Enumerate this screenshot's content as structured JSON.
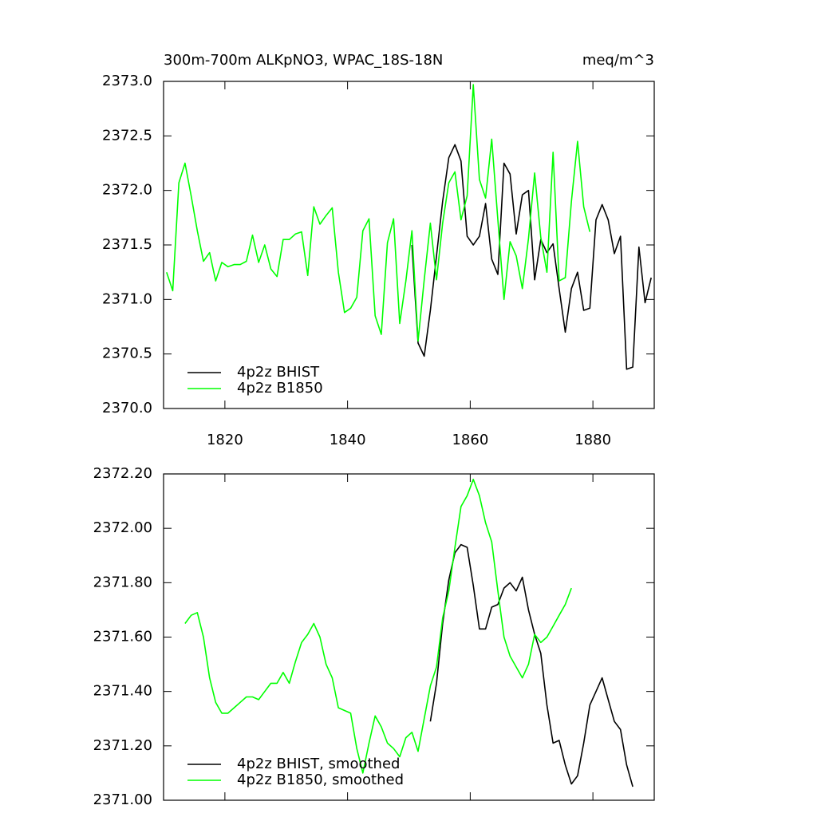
{
  "chart_data": [
    {
      "type": "line",
      "title": "300m-700m ALKpNO3, WPAC_18S-18N",
      "units": "meq/m^3",
      "xlim": [
        1810,
        1890
      ],
      "xticks": [
        1820,
        1840,
        1860,
        1880
      ],
      "xticklabels": true,
      "ylim": [
        2370,
        2373
      ],
      "yticks": [
        {
          "value": 2370,
          "label": "2370.0"
        },
        {
          "value": 2370.5,
          "label": "2370.5"
        },
        {
          "value": 2371,
          "label": "2371.0"
        },
        {
          "value": 2371.5,
          "label": "2371.5"
        },
        {
          "value": 2372,
          "label": "2372.0"
        },
        {
          "value": 2372.5,
          "label": "2372.5"
        },
        {
          "value": 2373,
          "label": "2373.0"
        }
      ],
      "legend": "lower left",
      "series": [
        {
          "name": "4p2z BHIST",
          "color": "#000000",
          "x": [
            1850.5,
            1851.5,
            1852.5,
            1853.5,
            1854.5,
            1855.5,
            1856.5,
            1857.5,
            1858.5,
            1859.5,
            1860.5,
            1861.5,
            1862.5,
            1863.5,
            1864.5,
            1865.5,
            1866.5,
            1867.5,
            1868.5,
            1869.5,
            1870.5,
            1871.5,
            1872.5,
            1873.5,
            1874.5,
            1875.5,
            1876.5,
            1877.5,
            1878.5,
            1879.5,
            1880.5,
            1881.5,
            1882.5,
            1883.5,
            1884.5,
            1885.5,
            1886.5,
            1887.5,
            1888.5,
            1889.5
          ],
          "values": [
            2371.5,
            2370.6,
            2370.48,
            2370.9,
            2371.4,
            2371.9,
            2372.3,
            2372.42,
            2372.27,
            2371.58,
            2371.5,
            2371.58,
            2371.88,
            2371.37,
            2371.23,
            2372.25,
            2372.15,
            2371.6,
            2371.96,
            2372.0,
            2371.18,
            2371.55,
            2371.43,
            2371.51,
            2371.1,
            2370.7,
            2371.1,
            2371.25,
            2370.9,
            2370.92,
            2371.73,
            2371.87,
            2371.73,
            2371.42,
            2371.58,
            2370.36,
            2370.38,
            2371.48,
            2370.97,
            2371.2
          ]
        },
        {
          "name": "4p2z B1850",
          "color": "#00ff00",
          "x": [
            1810.5,
            1811.5,
            1812.5,
            1813.5,
            1814.5,
            1815.5,
            1816.5,
            1817.5,
            1818.5,
            1819.5,
            1820.5,
            1821.5,
            1822.5,
            1823.5,
            1824.5,
            1825.5,
            1826.5,
            1827.5,
            1828.5,
            1829.5,
            1830.5,
            1831.5,
            1832.5,
            1833.5,
            1834.5,
            1835.5,
            1836.5,
            1837.5,
            1838.5,
            1839.5,
            1840.5,
            1841.5,
            1842.5,
            1843.5,
            1844.5,
            1845.5,
            1846.5,
            1847.5,
            1848.5,
            1849.5,
            1850.5,
            1851.5,
            1852.5,
            1853.5,
            1854.5,
            1855.5,
            1856.5,
            1857.5,
            1858.5,
            1859.5,
            1860.5,
            1861.5,
            1862.5,
            1863.5,
            1864.5,
            1865.5,
            1866.5,
            1867.5,
            1868.5,
            1869.5,
            1870.5,
            1871.5,
            1872.5,
            1873.5,
            1874.5,
            1875.5,
            1876.5,
            1877.5,
            1878.5,
            1879.5
          ],
          "values": [
            2371.25,
            2371.08,
            2372.07,
            2372.25,
            2371.95,
            2371.63,
            2371.35,
            2371.43,
            2371.17,
            2371.34,
            2371.3,
            2371.32,
            2371.32,
            2371.35,
            2371.59,
            2371.34,
            2371.5,
            2371.28,
            2371.21,
            2371.55,
            2371.55,
            2371.6,
            2371.62,
            2371.22,
            2371.85,
            2371.69,
            2371.77,
            2371.84,
            2371.25,
            2370.88,
            2370.92,
            2371.02,
            2371.63,
            2371.74,
            2370.85,
            2370.68,
            2371.52,
            2371.74,
            2370.78,
            2371.17,
            2371.63,
            2370.62,
            2371.18,
            2371.7,
            2371.18,
            2371.7,
            2372.07,
            2372.17,
            2371.73,
            2371.95,
            2372.97,
            2372.1,
            2371.93,
            2372.47,
            2371.73,
            2371.0,
            2371.53,
            2371.4,
            2371.1,
            2371.56,
            2372.16,
            2371.57,
            2371.25,
            2372.35,
            2371.17,
            2371.2,
            2371.9,
            2372.45,
            2371.85,
            2371.62
          ]
        }
      ]
    },
    {
      "type": "line",
      "xlim": [
        1810,
        1890
      ],
      "xticks": [
        1820,
        1840,
        1860,
        1880
      ],
      "xticklabels": false,
      "ylim": [
        2371,
        2372.2
      ],
      "yticks": [
        {
          "value": 2371,
          "label": "2371.00"
        },
        {
          "value": 2371.2,
          "label": "2371.20"
        },
        {
          "value": 2371.4,
          "label": "2371.40"
        },
        {
          "value": 2371.6,
          "label": "2371.60"
        },
        {
          "value": 2371.8,
          "label": "2371.80"
        },
        {
          "value": 2372,
          "label": "2372.00"
        },
        {
          "value": 2372.2,
          "label": "2372.20"
        }
      ],
      "legend": "lower left",
      "series": [
        {
          "name": "4p2z BHIST, smoothed",
          "color": "#000000",
          "x": [
            1853.5,
            1854.5,
            1855.5,
            1856.5,
            1857.5,
            1858.5,
            1859.5,
            1860.5,
            1861.5,
            1862.5,
            1863.5,
            1864.5,
            1865.5,
            1866.5,
            1867.5,
            1868.5,
            1869.5,
            1870.5,
            1871.5,
            1872.5,
            1873.5,
            1874.5,
            1875.5,
            1876.5,
            1877.5,
            1878.5,
            1879.5,
            1880.5,
            1881.5,
            1882.5,
            1883.5,
            1884.5,
            1885.5,
            1886.5
          ],
          "values": [
            2371.29,
            2371.43,
            2371.65,
            2371.81,
            2371.91,
            2371.94,
            2371.93,
            2371.79,
            2371.63,
            2371.63,
            2371.71,
            2371.72,
            2371.78,
            2371.8,
            2371.77,
            2371.82,
            2371.7,
            2371.61,
            2371.54,
            2371.35,
            2371.21,
            2371.22,
            2371.13,
            2371.06,
            2371.09,
            2371.21,
            2371.35,
            2371.4,
            2371.45,
            2371.37,
            2371.29,
            2371.26,
            2371.13,
            2371.05
          ]
        },
        {
          "name": "4p2z B1850, smoothed",
          "color": "#00ff00",
          "x": [
            1813.5,
            1814.5,
            1815.5,
            1816.5,
            1817.5,
            1818.5,
            1819.5,
            1820.5,
            1821.5,
            1822.5,
            1823.5,
            1824.5,
            1825.5,
            1826.5,
            1827.5,
            1828.5,
            1829.5,
            1830.5,
            1831.5,
            1832.5,
            1833.5,
            1834.5,
            1835.5,
            1836.5,
            1837.5,
            1838.5,
            1839.5,
            1840.5,
            1841.5,
            1842.5,
            1843.5,
            1844.5,
            1845.5,
            1846.5,
            1847.5,
            1848.5,
            1849.5,
            1850.5,
            1851.5,
            1852.5,
            1853.5,
            1854.5,
            1855.5,
            1856.5,
            1857.5,
            1858.5,
            1859.5,
            1860.5,
            1861.5,
            1862.5,
            1863.5,
            1864.5,
            1865.5,
            1866.5,
            1867.5,
            1868.5,
            1869.5,
            1870.5,
            1871.5,
            1872.5,
            1873.5,
            1874.5,
            1875.5,
            1876.5
          ],
          "values": [
            2371.65,
            2371.68,
            2371.69,
            2371.6,
            2371.45,
            2371.36,
            2371.32,
            2371.32,
            2371.34,
            2371.36,
            2371.38,
            2371.38,
            2371.37,
            2371.4,
            2371.43,
            2371.43,
            2371.47,
            2371.43,
            2371.51,
            2371.58,
            2371.61,
            2371.65,
            2371.6,
            2371.5,
            2371.45,
            2371.34,
            2371.33,
            2371.32,
            2371.19,
            2371.1,
            2371.21,
            2371.31,
            2371.27,
            2371.21,
            2371.19,
            2371.16,
            2371.23,
            2371.25,
            2371.18,
            2371.3,
            2371.42,
            2371.49,
            2371.67,
            2371.77,
            2371.93,
            2372.08,
            2372.12,
            2372.18,
            2372.12,
            2372.02,
            2371.95,
            2371.77,
            2371.6,
            2371.53,
            2371.49,
            2371.45,
            2371.5,
            2371.61,
            2371.58,
            2371.6,
            2371.64,
            2371.68,
            2371.72,
            2371.78
          ]
        }
      ]
    }
  ]
}
